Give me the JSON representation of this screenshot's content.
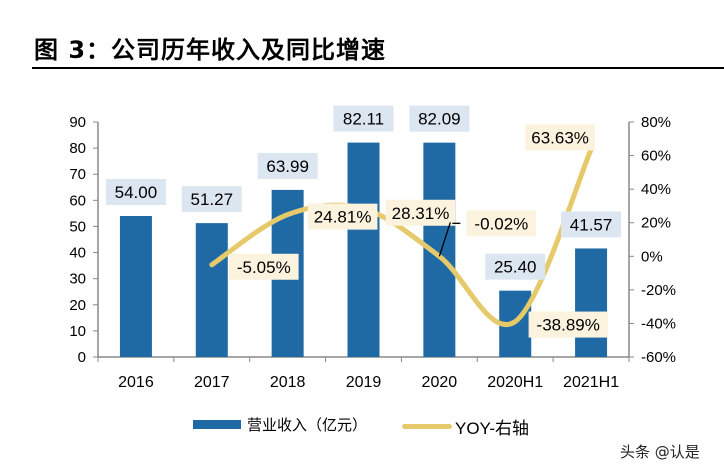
{
  "title": "图 3：公司历年收入及同比增速",
  "watermark": "头条 @认是",
  "chart_data": {
    "type": "bar+line",
    "categories": [
      "2016",
      "2017",
      "2018",
      "2019",
      "2020",
      "2020H1",
      "2021H1"
    ],
    "series": [
      {
        "name": "营业收入（亿元）",
        "type": "bar",
        "axis": "left",
        "color": "#1F6AA5",
        "values": [
          54.0,
          51.27,
          63.99,
          82.11,
          82.09,
          25.4,
          41.57
        ],
        "labels": [
          "54.00",
          "51.27",
          "63.99",
          "82.11",
          "82.09",
          "25.40",
          "41.57"
        ]
      },
      {
        "name": "YOY-右轴",
        "type": "line",
        "axis": "right",
        "color": "#E6C96A",
        "smooth": true,
        "values": [
          null,
          -5.05,
          24.81,
          28.31,
          -0.02,
          -38.89,
          63.63
        ],
        "labels": [
          "",
          "-5.05%",
          "24.81%",
          "28.31%",
          "-0.02%",
          "-38.89%",
          "63.63%"
        ]
      }
    ],
    "left_axis": {
      "range": [
        0,
        90
      ],
      "ticks": [
        "0",
        "10",
        "20",
        "30",
        "40",
        "50",
        "60",
        "70",
        "80",
        "90"
      ]
    },
    "right_axis": {
      "range": [
        -60,
        80
      ],
      "unit": "%",
      "ticks": [
        "-60%",
        "-40%",
        "-20%",
        "0%",
        "20%",
        "40%",
        "60%",
        "80%"
      ]
    },
    "grid": false,
    "legend": "bottom",
    "bar_label_bg": "#DCE6F1",
    "line_label_bg": "#FBF3DE"
  }
}
